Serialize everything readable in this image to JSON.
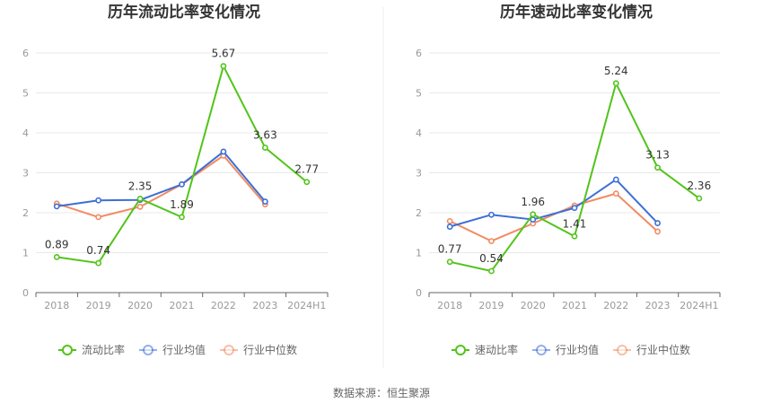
{
  "source_text": "数据来源：恒生聚源",
  "chart_data": [
    {
      "type": "line",
      "title": "历年流动比率变化情况",
      "categories": [
        "2018",
        "2019",
        "2020",
        "2021",
        "2022",
        "2023",
        "2024H1"
      ],
      "ylim": [
        0,
        6
      ],
      "yticks": [
        0,
        1,
        2,
        3,
        4,
        5,
        6
      ],
      "grid": true,
      "legend_position": "bottom",
      "series": [
        {
          "name": "流动比率",
          "color": "#52c41a",
          "values": [
            0.89,
            0.74,
            2.35,
            1.89,
            5.67,
            3.63,
            2.77
          ],
          "labels": true
        },
        {
          "name": "行业均值",
          "color": "#3d6fd6",
          "values": [
            2.16,
            2.31,
            2.32,
            2.71,
            3.53,
            2.28,
            null
          ],
          "labels": false
        },
        {
          "name": "行业中位数",
          "color": "#f08c63",
          "values": [
            2.23,
            1.89,
            2.15,
            2.71,
            3.43,
            2.21,
            null
          ],
          "labels": false
        }
      ]
    },
    {
      "type": "line",
      "title": "历年速动比率变化情况",
      "categories": [
        "2018",
        "2019",
        "2020",
        "2021",
        "2022",
        "2023",
        "2024H1"
      ],
      "ylim": [
        0,
        6
      ],
      "yticks": [
        0,
        1,
        2,
        3,
        4,
        5,
        6
      ],
      "grid": true,
      "legend_position": "bottom",
      "series": [
        {
          "name": "速动比率",
          "color": "#52c41a",
          "values": [
            0.77,
            0.54,
            1.96,
            1.41,
            5.24,
            3.13,
            2.36
          ],
          "labels": true
        },
        {
          "name": "行业均值",
          "color": "#3d6fd6",
          "values": [
            1.65,
            1.95,
            1.83,
            2.12,
            2.83,
            1.74,
            null
          ],
          "labels": false
        },
        {
          "name": "行业中位数",
          "color": "#f08c63",
          "values": [
            1.79,
            1.29,
            1.73,
            2.18,
            2.48,
            1.53,
            null
          ],
          "labels": false
        }
      ]
    }
  ]
}
